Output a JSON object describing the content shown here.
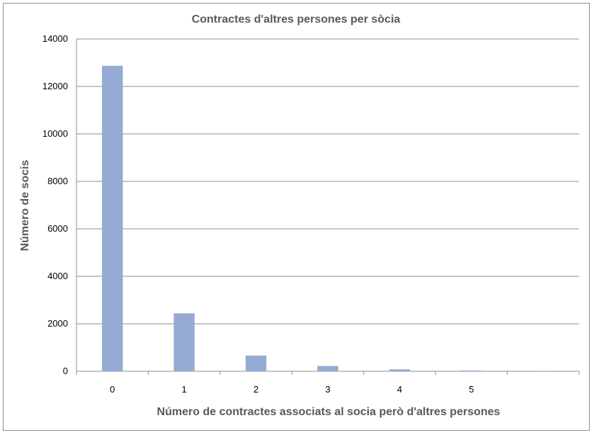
{
  "chart_data": {
    "type": "bar",
    "title": "Contractes  d'altres persones per sòcia",
    "xlabel": "Número de contractes associats al socia però d'altres persones",
    "ylabel": "Número de socis",
    "categories": [
      "0",
      "1",
      "2",
      "3",
      "4",
      "5",
      ""
    ],
    "values": [
      12870,
      2440,
      660,
      220,
      80,
      30,
      5
    ],
    "ylim": [
      0,
      14000
    ],
    "yticks": [
      "0",
      "2000",
      "4000",
      "6000",
      "8000",
      "10000",
      "12000",
      "14000"
    ],
    "grid": true,
    "bar_color": "#95abd4",
    "grid_color": "#8c8c8c"
  }
}
